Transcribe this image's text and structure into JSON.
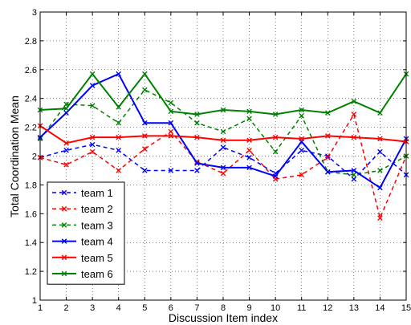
{
  "chart_data": {
    "type": "line",
    "xlabel": "Discussion Item index",
    "ylabel": "Total Coordination Mean",
    "xlim": [
      1,
      15
    ],
    "ylim": [
      1,
      3
    ],
    "x_ticks": [
      1,
      2,
      3,
      4,
      5,
      6,
      7,
      8,
      9,
      10,
      11,
      12,
      13,
      14,
      15
    ],
    "y_ticks": [
      "1",
      "1.2",
      "1.4",
      "1.6",
      "1.8",
      "2",
      "2.2",
      "2.4",
      "2.6",
      "2.8",
      "3"
    ],
    "grid": "dotted",
    "legend_position": "lower-left",
    "x": [
      1,
      2,
      3,
      4,
      5,
      6,
      7,
      8,
      9,
      10,
      11,
      12,
      13,
      14,
      15
    ],
    "series": [
      {
        "name": "team 1",
        "color": "#0000ff",
        "line": "dashed",
        "marker": "x",
        "values": [
          1.99,
          2.04,
          2.08,
          2.04,
          1.9,
          1.9,
          1.9,
          2.06,
          1.99,
          1.88,
          2.04,
          2.0,
          1.84,
          2.03,
          1.87
        ]
      },
      {
        "name": "team 2",
        "color": "#ff0000",
        "line": "dashed",
        "marker": "x",
        "values": [
          1.99,
          1.94,
          2.03,
          1.9,
          2.05,
          2.17,
          1.96,
          1.88,
          2.04,
          1.84,
          1.87,
          1.99,
          2.29,
          1.57,
          2.0
        ]
      },
      {
        "name": "team 3",
        "color": "#008000",
        "line": "dashed",
        "marker": "x",
        "values": [
          2.12,
          2.36,
          2.35,
          2.23,
          2.46,
          2.37,
          2.23,
          2.17,
          2.26,
          2.03,
          2.28,
          1.89,
          1.87,
          1.9,
          2.0
        ]
      },
      {
        "name": "team 4",
        "color": "#0000ff",
        "line": "solid",
        "marker": "x",
        "values": [
          2.13,
          2.3,
          2.49,
          2.57,
          2.23,
          2.23,
          1.95,
          1.92,
          1.92,
          1.86,
          2.1,
          1.89,
          1.9,
          1.78,
          2.12
        ]
      },
      {
        "name": "team 5",
        "color": "#ff0000",
        "line": "solid",
        "marker": "x",
        "values": [
          2.21,
          2.09,
          2.13,
          2.13,
          2.14,
          2.14,
          2.13,
          2.11,
          2.11,
          2.13,
          2.12,
          2.14,
          2.13,
          2.12,
          2.1
        ]
      },
      {
        "name": "team 6",
        "color": "#008000",
        "line": "solid",
        "marker": "x",
        "values": [
          2.32,
          2.33,
          2.57,
          2.34,
          2.57,
          2.31,
          2.29,
          2.32,
          2.31,
          2.29,
          2.32,
          2.3,
          2.38,
          2.3,
          2.57
        ]
      }
    ]
  }
}
